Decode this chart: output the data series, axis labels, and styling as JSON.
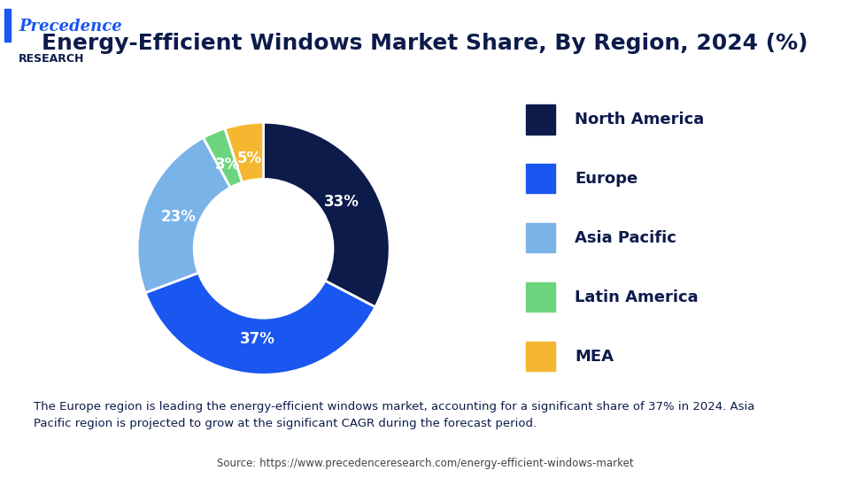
{
  "title": "Energy-Efficient Windows Market Share, By Region, 2024 (%)",
  "labels": [
    "North America",
    "Europe",
    "Asia Pacific",
    "Latin America",
    "MEA"
  ],
  "values": [
    33,
    37,
    23,
    3,
    5
  ],
  "colors": [
    "#0d1b4b",
    "#1a56f0",
    "#7ab3e8",
    "#6dd47e",
    "#f5b731"
  ],
  "pct_labels": [
    "33%",
    "37%",
    "23%",
    "3%",
    "5%"
  ],
  "note_text": "The Europe region is leading the energy-efficient windows market, accounting for a significant share of 37% in 2024. Asia\nPacific region is projected to grow at the significant CAGR during the forecast period.",
  "source_text": "Source: https://www.precedenceresearch.com/energy-efficient-windows-market",
  "background_color": "#ffffff",
  "note_bg_color": "#e8f0fb",
  "header_line_color": "#1a56f0",
  "logo_text_top": "Precedence",
  "logo_text_bottom": "RESEARCH"
}
